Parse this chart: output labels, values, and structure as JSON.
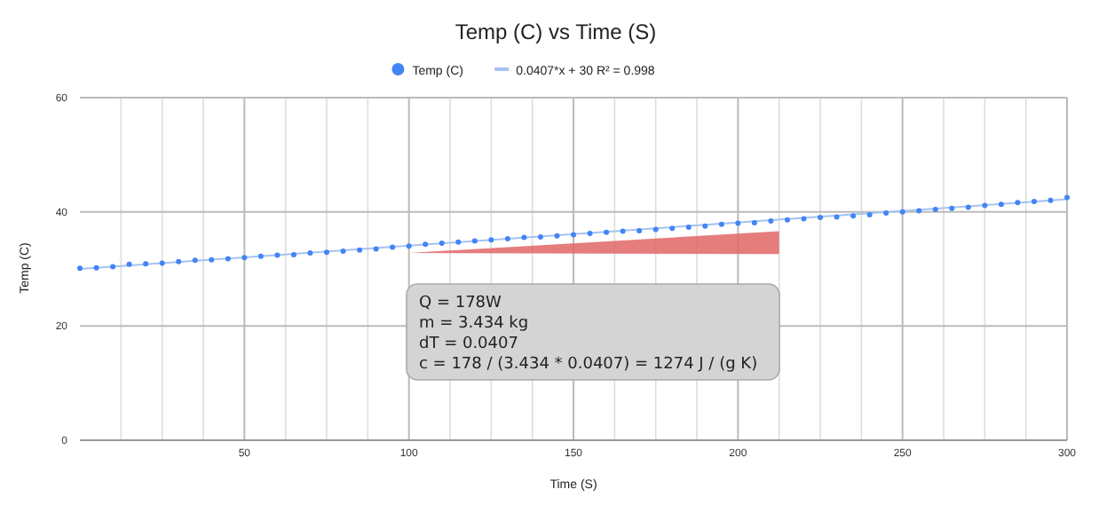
{
  "chart_data": {
    "type": "scatter",
    "title": "Temp (C) vs Time (S)",
    "xlabel": "Time (S)",
    "ylabel": "Temp (C)",
    "xlim": [
      0,
      300
    ],
    "ylim": [
      0,
      60
    ],
    "yticks": [
      0,
      20,
      40,
      60
    ],
    "xticks": [
      {
        "value": 12.5,
        "label": null
      },
      {
        "value": 25,
        "label": null
      },
      {
        "value": 37.5,
        "label": null
      },
      50,
      {
        "value": 62.5,
        "label": null
      },
      {
        "value": 75,
        "label": null
      },
      {
        "value": 87.5,
        "label": null
      },
      100,
      {
        "value": 112.5,
        "label": null
      },
      {
        "value": 125,
        "label": null
      },
      {
        "value": 137.5,
        "label": null
      },
      150,
      {
        "value": 162.5,
        "label": null
      },
      {
        "value": 175,
        "label": null
      },
      {
        "value": 187.5,
        "label": null
      },
      200,
      {
        "value": 212.5,
        "label": null
      },
      {
        "value": 225,
        "label": null
      },
      {
        "value": 237.5,
        "label": null
      },
      250,
      {
        "value": 262.5,
        "label": null
      },
      {
        "value": 275,
        "label": null
      },
      {
        "value": 287.5,
        "label": null
      },
      300
    ],
    "grid": true,
    "legend": "top",
    "marker": "circle",
    "series": [
      {
        "name": "Temp (C)",
        "color": "#4285f4",
        "x": [
          0,
          5,
          10,
          15,
          20,
          25,
          30,
          35,
          40,
          45,
          50,
          55,
          60,
          65,
          70,
          75,
          80,
          85,
          90,
          95,
          100,
          105,
          110,
          115,
          120,
          125,
          130,
          135,
          140,
          145,
          150,
          155,
          160,
          165,
          170,
          175,
          180,
          185,
          190,
          195,
          200,
          205,
          210,
          215,
          220,
          225,
          230,
          235,
          240,
          245,
          250,
          255,
          260,
          265,
          270,
          275,
          280,
          285,
          290,
          295,
          300
        ],
        "values": [
          30.1,
          30.2,
          30.4,
          30.8,
          30.9,
          31.0,
          31.3,
          31.5,
          31.6,
          31.8,
          32.0,
          32.2,
          32.4,
          32.5,
          32.8,
          32.9,
          33.1,
          33.3,
          33.5,
          33.8,
          34.0,
          34.3,
          34.5,
          34.7,
          34.9,
          35.1,
          35.3,
          35.5,
          35.6,
          35.8,
          36.0,
          36.2,
          36.4,
          36.6,
          36.7,
          36.9,
          37.1,
          37.3,
          37.5,
          37.8,
          38.0,
          38.1,
          38.4,
          38.6,
          38.8,
          39.0,
          39.1,
          39.3,
          39.5,
          39.8,
          40.0,
          40.2,
          40.4,
          40.6,
          40.8,
          41.1,
          41.3,
          41.6,
          41.8,
          42.0,
          42.5
        ]
      },
      {
        "name": "0.0407*x + 30 R² = 0.998",
        "color": "#a4c2f4",
        "type": "line",
        "marker": "none",
        "x": [
          0,
          300
        ],
        "values": [
          30,
          42.2
        ]
      }
    ],
    "annotations": [
      "Q = 178W",
      "m = 3.434 kg",
      "dT = 0.0407",
      "c = 178 / (3.434 * 0.0407) = 1274 J / (g K)"
    ]
  }
}
